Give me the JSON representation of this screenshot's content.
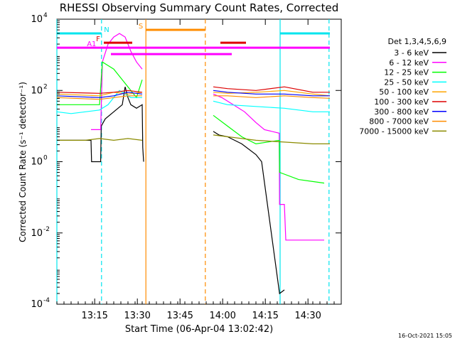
{
  "chart_data": {
    "type": "line",
    "title": "RHESSI Observing Summary Count Rates, Corrected",
    "xlabel": "Start Time (06-Apr-04 13:02:42)",
    "ylabel": "Corrected Count Rate (s⁻¹ detector⁻¹)",
    "x_unit": "minutes",
    "xlim": [
      0,
      100
    ],
    "y_scale": "log",
    "ylim_exp": [
      -4,
      4
    ],
    "x_ticks": [
      {
        "pos": 13.3,
        "label": "13:15"
      },
      {
        "pos": 28.3,
        "label": "13:30"
      },
      {
        "pos": 43.3,
        "label": "13:45"
      },
      {
        "pos": 58.3,
        "label": "14:00"
      },
      {
        "pos": 73.3,
        "label": "14:15"
      },
      {
        "pos": 88.3,
        "label": "14:30"
      }
    ],
    "y_ticks": [
      {
        "exp": 4,
        "base": "10",
        "sup": "4"
      },
      {
        "exp": 2,
        "base": "10",
        "sup": "2"
      },
      {
        "exp": 0,
        "base": "10",
        "sup": "0"
      },
      {
        "exp": -2,
        "base": "10",
        "sup": "-2"
      },
      {
        "exp": -4,
        "base": "10",
        "sup": "-4"
      }
    ],
    "legend": {
      "header": "Det 1,3,4,5,6,9",
      "placement": "right"
    },
    "series": [
      {
        "name": "3 - 6 keV",
        "color": "#000000",
        "points": [
          [
            0,
            0.6
          ],
          [
            12,
            0.6
          ],
          [
            12.2,
            0
          ],
          [
            15.4,
            0
          ],
          [
            15.6,
            1
          ],
          [
            17,
            1.2
          ],
          [
            20,
            1.4
          ],
          [
            23,
            1.6
          ],
          [
            24,
            2.1
          ],
          [
            25,
            1.8
          ],
          [
            26,
            1.6
          ],
          [
            28,
            1.5
          ],
          [
            30,
            1.6
          ],
          [
            30.2,
            0.4
          ],
          [
            30.5,
            0
          ],
          [
            30.6,
            null
          ],
          [
            55,
            0.85
          ],
          [
            57,
            0.75
          ],
          [
            60,
            0.7
          ],
          [
            65,
            0.5
          ],
          [
            70,
            0.2
          ],
          [
            72,
            0.0
          ],
          [
            78.3,
            -3.7
          ],
          [
            80,
            -3.6
          ],
          [
            80.5,
            null
          ]
        ]
      },
      {
        "name": "6 - 12 keV",
        "color": "#ff00ff",
        "points": [
          [
            12,
            0.9
          ],
          [
            15.4,
            0.9
          ],
          [
            16,
            2.8
          ],
          [
            18,
            3.3
          ],
          [
            20,
            3.5
          ],
          [
            22,
            3.6
          ],
          [
            24,
            3.5
          ],
          [
            26,
            3.1
          ],
          [
            28,
            2.8
          ],
          [
            30,
            2.6
          ],
          [
            30.2,
            null
          ],
          [
            55,
            1.9
          ],
          [
            58,
            1.8
          ],
          [
            62,
            1.6
          ],
          [
            66,
            1.4
          ],
          [
            70,
            1.1
          ],
          [
            73,
            0.9
          ],
          [
            78.2,
            0.8
          ],
          [
            78.3,
            -1.2
          ],
          [
            80,
            -1.2
          ],
          [
            80.5,
            -2.2
          ],
          [
            94,
            -2.2
          ]
        ]
      },
      {
        "name": "12 - 25 keV",
        "color": "#00ff00",
        "points": [
          [
            0,
            1.6
          ],
          [
            15,
            1.6
          ],
          [
            16,
            2.8
          ],
          [
            18,
            2.7
          ],
          [
            20,
            2.6
          ],
          [
            22,
            2.4
          ],
          [
            24,
            2.2
          ],
          [
            26,
            2.0
          ],
          [
            28,
            1.8
          ],
          [
            30,
            2.3
          ],
          [
            30.2,
            null
          ],
          [
            55,
            1.3
          ],
          [
            60,
            1.0
          ],
          [
            65,
            0.7
          ],
          [
            70,
            0.5
          ],
          [
            78.2,
            0.6
          ],
          [
            78.3,
            -0.3
          ],
          [
            85,
            -0.5
          ],
          [
            94,
            -0.6
          ]
        ]
      },
      {
        "name": "25 - 50 keV",
        "color": "#00ffff",
        "points": [
          [
            0,
            1.4
          ],
          [
            5,
            1.35
          ],
          [
            10,
            1.4
          ],
          [
            15,
            1.45
          ],
          [
            18,
            1.6
          ],
          [
            20,
            1.8
          ],
          [
            22,
            2.0
          ],
          [
            24,
            1.9
          ],
          [
            26,
            1.8
          ],
          [
            28,
            1.8
          ],
          [
            30,
            1.8
          ],
          [
            30.2,
            null
          ],
          [
            55,
            1.7
          ],
          [
            60,
            1.6
          ],
          [
            70,
            1.55
          ],
          [
            80,
            1.5
          ],
          [
            90,
            1.4
          ],
          [
            96,
            1.4
          ]
        ]
      },
      {
        "name": "50 - 100 keV",
        "color": "#ffa500",
        "points": [
          [
            0,
            1.9
          ],
          [
            15,
            1.85
          ],
          [
            20,
            1.95
          ],
          [
            25,
            1.9
          ],
          [
            30,
            1.95
          ],
          [
            30.2,
            null
          ],
          [
            55,
            1.95
          ],
          [
            60,
            1.92
          ],
          [
            70,
            1.95
          ],
          [
            80,
            2.0
          ],
          [
            90,
            1.9
          ],
          [
            96,
            1.85
          ]
        ]
      },
      {
        "name": "100 - 300 keV",
        "color": "#dd0000",
        "points": [
          [
            0,
            1.95
          ],
          [
            15,
            1.92
          ],
          [
            20,
            1.95
          ],
          [
            25,
            2.0
          ],
          [
            30,
            1.95
          ],
          [
            30.2,
            null
          ],
          [
            55,
            2.1
          ],
          [
            60,
            2.05
          ],
          [
            70,
            2.0
          ],
          [
            80,
            2.1
          ],
          [
            90,
            1.95
          ],
          [
            96,
            1.95
          ]
        ]
      },
      {
        "name": "300 - 800 keV",
        "color": "#0000ff",
        "points": [
          [
            0,
            1.85
          ],
          [
            15,
            1.8
          ],
          [
            20,
            1.85
          ],
          [
            25,
            1.95
          ],
          [
            30,
            1.9
          ],
          [
            30.2,
            null
          ],
          [
            55,
            2.0
          ],
          [
            60,
            1.95
          ],
          [
            70,
            1.9
          ],
          [
            80,
            1.9
          ],
          [
            90,
            1.85
          ],
          [
            96,
            1.85
          ]
        ]
      },
      {
        "name": "800 - 7000 keV",
        "color": "#ff8c00",
        "points": [
          [
            0,
            1.8
          ],
          [
            15,
            1.75
          ],
          [
            20,
            1.8
          ],
          [
            25,
            1.85
          ],
          [
            30,
            1.85
          ],
          [
            30.2,
            null
          ],
          [
            55,
            1.85
          ],
          [
            60,
            1.85
          ],
          [
            70,
            1.8
          ],
          [
            80,
            1.85
          ],
          [
            90,
            1.8
          ],
          [
            96,
            1.78
          ]
        ]
      },
      {
        "name": "7000 - 15000 keV",
        "color": "#8b8b00",
        "points": [
          [
            0,
            0.6
          ],
          [
            10,
            0.6
          ],
          [
            15,
            0.65
          ],
          [
            20,
            0.6
          ],
          [
            25,
            0.65
          ],
          [
            30,
            0.6
          ],
          [
            30.2,
            null
          ],
          [
            55,
            0.75
          ],
          [
            60,
            0.7
          ],
          [
            70,
            0.6
          ],
          [
            80,
            0.55
          ],
          [
            90,
            0.5
          ],
          [
            96,
            0.5
          ]
        ]
      }
    ],
    "vertical_markers": [
      {
        "x": 0,
        "color": "#00e5ee",
        "style": "solid"
      },
      {
        "x": 15.7,
        "color": "#00e5ee",
        "style": "dashed"
      },
      {
        "x": 31.3,
        "color": "#ff8c00",
        "style": "solid"
      },
      {
        "x": 52.2,
        "color": "#ff8c00",
        "style": "dashed"
      },
      {
        "x": 78.5,
        "color": "#00e5ee",
        "style": "solid"
      },
      {
        "x": 95.7,
        "color": "#00e5ee",
        "style": "dashed"
      }
    ],
    "flag_bars": [
      {
        "label": "N",
        "color": "#00e5ee",
        "y_exp": 3.6,
        "segments": [
          [
            0,
            15.7
          ],
          [
            78.5,
            96
          ]
        ],
        "label_x": 17.5
      },
      {
        "label": "S",
        "color": "#ff8c00",
        "y_exp": 3.7,
        "segments": [
          [
            31.3,
            52.2
          ]
        ],
        "label_x": 29.5
      },
      {
        "label": "F",
        "color": "#dd0000",
        "y_exp": 3.34,
        "segments": [
          [
            16.5,
            26.5
          ],
          [
            57.5,
            66.5
          ]
        ],
        "label_x": 14.5
      },
      {
        "label": "A1",
        "color": "#ff00ff",
        "y_exp": 3.2,
        "segments": [
          [
            0,
            96
          ]
        ],
        "label_x": 12.2
      },
      {
        "label": "",
        "color": "#ff00ff",
        "y_exp": 3.02,
        "segments": [
          [
            19,
            61.5
          ]
        ],
        "label_x": 0
      }
    ]
  },
  "timestamp": "16-Oct-2021 15:05"
}
